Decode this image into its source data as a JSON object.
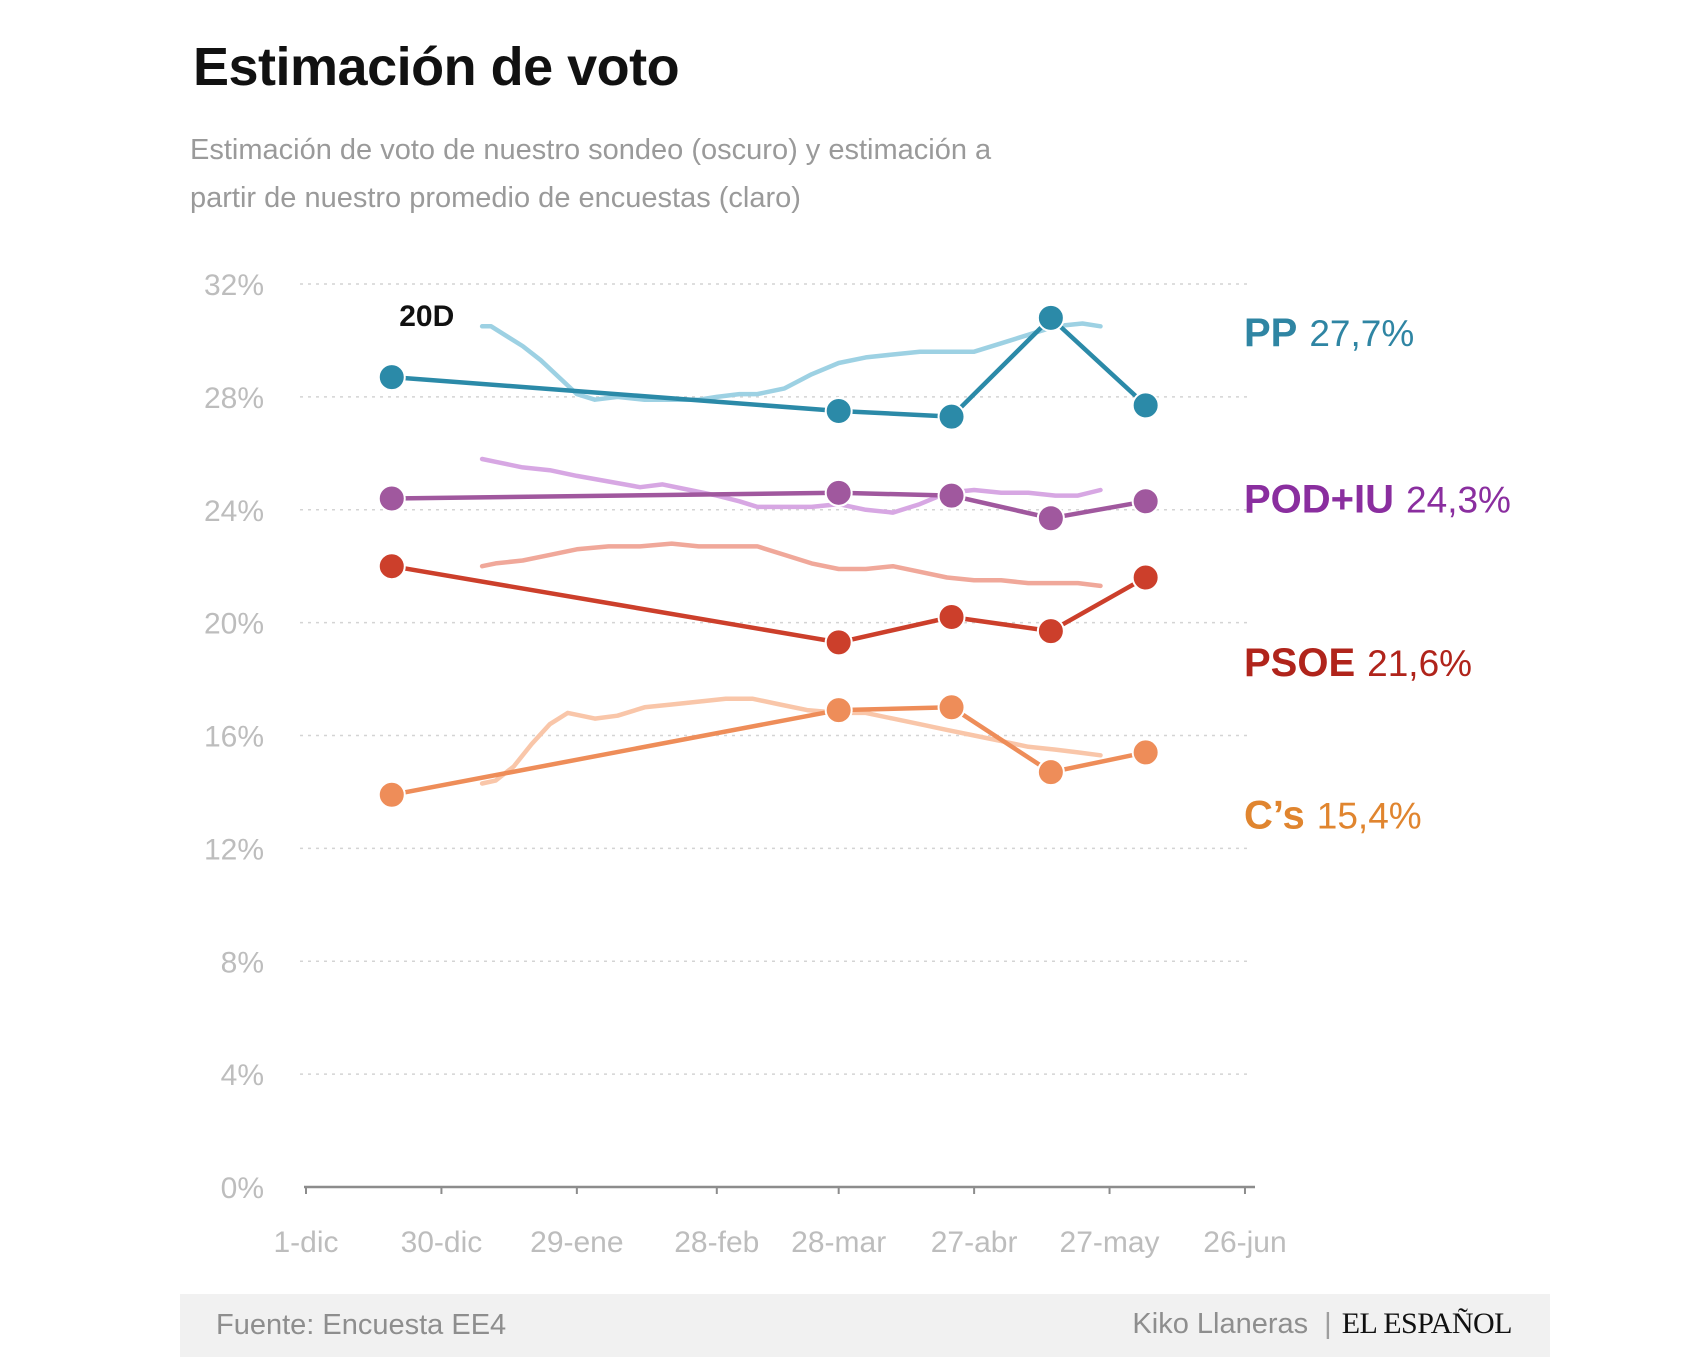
{
  "title": "Estimación de voto",
  "subtitle_line1": "Estimación de voto de nuestro sondeo (oscuro) y estimación a",
  "subtitle_line2": "partir de nuestro promedio de encuestas (claro)",
  "footer": {
    "source": "Fuente: Encuesta EE4",
    "author": "Kiko Llaneras",
    "separator": "|",
    "brand": "EL ESPAÑOL"
  },
  "chart_data": {
    "type": "line",
    "xlabel": "",
    "ylabel": "",
    "ylim": [
      0,
      32
    ],
    "yticks": [
      0,
      4,
      8,
      12,
      16,
      20,
      24,
      28,
      32
    ],
    "ytick_labels": [
      "0%",
      "4%",
      "8%",
      "12%",
      "16%",
      "20%",
      "24%",
      "28%",
      "32%"
    ],
    "xlim": [
      "2015-12-01",
      "2016-06-28"
    ],
    "xticks": [
      "2015-12-01",
      "2015-12-31",
      "2016-01-30",
      "2016-03-01",
      "2016-03-28",
      "2016-04-27",
      "2016-05-27",
      "2016-06-26"
    ],
    "xtick_labels": [
      "1-dic",
      "30-dic",
      "29-ene",
      "28-feb",
      "28-mar",
      "27-abr",
      "27-may",
      "26-jun"
    ],
    "grid": "horizontal dotted",
    "annotation": {
      "text": "20D",
      "x": "2015-12-20",
      "y": 31
    },
    "series": [
      {
        "name": "PP",
        "label_value": "27,7%",
        "label_y": 30.3,
        "color_dark": "#2b8aa8",
        "color_light": "#9dd1e3",
        "label_color": "#2f85a3",
        "survey": [
          [
            "2015-12-20",
            28.7
          ],
          [
            "2016-03-28",
            27.5
          ],
          [
            "2016-04-22",
            27.3
          ],
          [
            "2016-05-14",
            30.8
          ],
          [
            "2016-06-04",
            27.7
          ]
        ],
        "average": [
          [
            "2016-01-09",
            30.5
          ],
          [
            "2016-01-11",
            30.5
          ],
          [
            "2016-01-14",
            30.2
          ],
          [
            "2016-01-18",
            29.8
          ],
          [
            "2016-01-22",
            29.3
          ],
          [
            "2016-01-26",
            28.7
          ],
          [
            "2016-01-30",
            28.1
          ],
          [
            "2016-02-03",
            27.9
          ],
          [
            "2016-02-08",
            28.0
          ],
          [
            "2016-02-14",
            27.9
          ],
          [
            "2016-02-20",
            27.9
          ],
          [
            "2016-02-26",
            27.9
          ],
          [
            "2016-03-01",
            28.0
          ],
          [
            "2016-03-06",
            28.1
          ],
          [
            "2016-03-10",
            28.1
          ],
          [
            "2016-03-16",
            28.3
          ],
          [
            "2016-03-22",
            28.8
          ],
          [
            "2016-03-28",
            29.2
          ],
          [
            "2016-04-03",
            29.4
          ],
          [
            "2016-04-09",
            29.5
          ],
          [
            "2016-04-15",
            29.6
          ],
          [
            "2016-04-21",
            29.6
          ],
          [
            "2016-04-27",
            29.6
          ],
          [
            "2016-05-03",
            29.9
          ],
          [
            "2016-05-09",
            30.2
          ],
          [
            "2016-05-15",
            30.5
          ],
          [
            "2016-05-21",
            30.6
          ],
          [
            "2016-05-25",
            30.5
          ]
        ]
      },
      {
        "name": "POD+IU",
        "label_value": "24,3%",
        "label_y": 24.4,
        "color_dark": "#a0589e",
        "color_light": "#d7a7e3",
        "label_color": "#8a2e9f",
        "survey": [
          [
            "2015-12-20",
            24.4
          ],
          [
            "2016-03-28",
            24.6
          ],
          [
            "2016-04-22",
            24.5
          ],
          [
            "2016-05-14",
            23.7
          ],
          [
            "2016-06-04",
            24.3
          ]
        ],
        "average": [
          [
            "2016-01-09",
            25.8
          ],
          [
            "2016-01-12",
            25.7
          ],
          [
            "2016-01-18",
            25.5
          ],
          [
            "2016-01-24",
            25.4
          ],
          [
            "2016-01-30",
            25.2
          ],
          [
            "2016-02-06",
            25.0
          ],
          [
            "2016-02-13",
            24.8
          ],
          [
            "2016-02-18",
            24.9
          ],
          [
            "2016-02-24",
            24.7
          ],
          [
            "2016-03-01",
            24.5
          ],
          [
            "2016-03-06",
            24.3
          ],
          [
            "2016-03-10",
            24.1
          ],
          [
            "2016-03-16",
            24.1
          ],
          [
            "2016-03-22",
            24.1
          ],
          [
            "2016-03-28",
            24.2
          ],
          [
            "2016-04-03",
            24.0
          ],
          [
            "2016-04-09",
            23.9
          ],
          [
            "2016-04-15",
            24.2
          ],
          [
            "2016-04-21",
            24.6
          ],
          [
            "2016-04-27",
            24.7
          ],
          [
            "2016-05-03",
            24.6
          ],
          [
            "2016-05-09",
            24.6
          ],
          [
            "2016-05-15",
            24.5
          ],
          [
            "2016-05-20",
            24.5
          ],
          [
            "2016-05-25",
            24.7
          ]
        ]
      },
      {
        "name": "PSOE",
        "label_value": "21,6%",
        "label_y": 18.6,
        "color_dark": "#cc3f2b",
        "color_light": "#f0a89a",
        "label_color": "#b0241b",
        "survey": [
          [
            "2015-12-20",
            22.0
          ],
          [
            "2016-03-28",
            19.3
          ],
          [
            "2016-04-22",
            20.2
          ],
          [
            "2016-05-14",
            19.7
          ],
          [
            "2016-06-04",
            21.6
          ]
        ],
        "average": [
          [
            "2016-01-09",
            22.0
          ],
          [
            "2016-01-12",
            22.1
          ],
          [
            "2016-01-18",
            22.2
          ],
          [
            "2016-01-24",
            22.4
          ],
          [
            "2016-01-30",
            22.6
          ],
          [
            "2016-02-06",
            22.7
          ],
          [
            "2016-02-13",
            22.7
          ],
          [
            "2016-02-20",
            22.8
          ],
          [
            "2016-02-26",
            22.7
          ],
          [
            "2016-03-03",
            22.7
          ],
          [
            "2016-03-10",
            22.7
          ],
          [
            "2016-03-16",
            22.4
          ],
          [
            "2016-03-22",
            22.1
          ],
          [
            "2016-03-28",
            21.9
          ],
          [
            "2016-04-03",
            21.9
          ],
          [
            "2016-04-09",
            22.0
          ],
          [
            "2016-04-15",
            21.8
          ],
          [
            "2016-04-21",
            21.6
          ],
          [
            "2016-04-27",
            21.5
          ],
          [
            "2016-05-03",
            21.5
          ],
          [
            "2016-05-09",
            21.4
          ],
          [
            "2016-05-15",
            21.4
          ],
          [
            "2016-05-20",
            21.4
          ],
          [
            "2016-05-25",
            21.3
          ]
        ]
      },
      {
        "name": "C’s",
        "label_value": "15,4%",
        "label_y": 13.2,
        "color_dark": "#ee8d59",
        "color_light": "#f9c6a9",
        "label_color": "#e0852f",
        "survey": [
          [
            "2015-12-20",
            13.9
          ],
          [
            "2016-03-28",
            16.9
          ],
          [
            "2016-04-22",
            17.0
          ],
          [
            "2016-05-14",
            14.7
          ],
          [
            "2016-06-04",
            15.4
          ]
        ],
        "average": [
          [
            "2016-01-09",
            14.3
          ],
          [
            "2016-01-12",
            14.4
          ],
          [
            "2016-01-16",
            14.9
          ],
          [
            "2016-01-20",
            15.7
          ],
          [
            "2016-01-24",
            16.4
          ],
          [
            "2016-01-28",
            16.8
          ],
          [
            "2016-02-03",
            16.6
          ],
          [
            "2016-02-08",
            16.7
          ],
          [
            "2016-02-14",
            17.0
          ],
          [
            "2016-02-20",
            17.1
          ],
          [
            "2016-02-26",
            17.2
          ],
          [
            "2016-03-03",
            17.3
          ],
          [
            "2016-03-09",
            17.3
          ],
          [
            "2016-03-15",
            17.1
          ],
          [
            "2016-03-21",
            16.9
          ],
          [
            "2016-03-28",
            16.8
          ],
          [
            "2016-04-03",
            16.8
          ],
          [
            "2016-04-09",
            16.6
          ],
          [
            "2016-04-15",
            16.4
          ],
          [
            "2016-04-21",
            16.2
          ],
          [
            "2016-04-27",
            16.0
          ],
          [
            "2016-05-03",
            15.8
          ],
          [
            "2016-05-09",
            15.6
          ],
          [
            "2016-05-15",
            15.5
          ],
          [
            "2016-05-20",
            15.4
          ],
          [
            "2016-05-25",
            15.3
          ]
        ]
      }
    ]
  }
}
